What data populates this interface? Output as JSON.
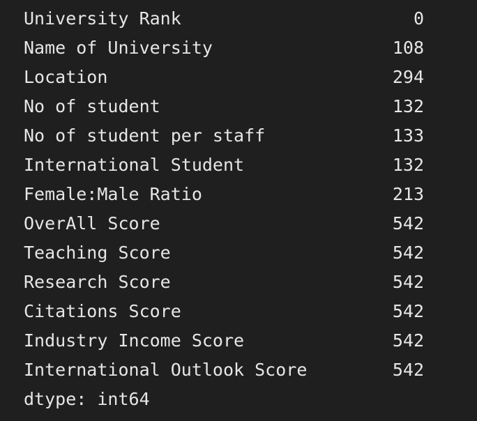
{
  "output": {
    "rows": [
      {
        "label": "University Rank",
        "value": "0"
      },
      {
        "label": "Name of University",
        "value": "108"
      },
      {
        "label": "Location",
        "value": "294"
      },
      {
        "label": "No of student",
        "value": "132"
      },
      {
        "label": "No of student per staff",
        "value": "133"
      },
      {
        "label": "International Student",
        "value": "132"
      },
      {
        "label": "Female:Male Ratio",
        "value": "213"
      },
      {
        "label": "OverAll Score",
        "value": "542"
      },
      {
        "label": "Teaching Score",
        "value": "542"
      },
      {
        "label": "Research Score",
        "value": "542"
      },
      {
        "label": "Citations Score",
        "value": "542"
      },
      {
        "label": "Industry Income Score",
        "value": "542"
      },
      {
        "label": "International Outlook Score",
        "value": "542"
      }
    ],
    "dtype": "dtype: int64"
  },
  "colors": {
    "background": "#1f1f1f",
    "text": "#e6e6e6"
  }
}
